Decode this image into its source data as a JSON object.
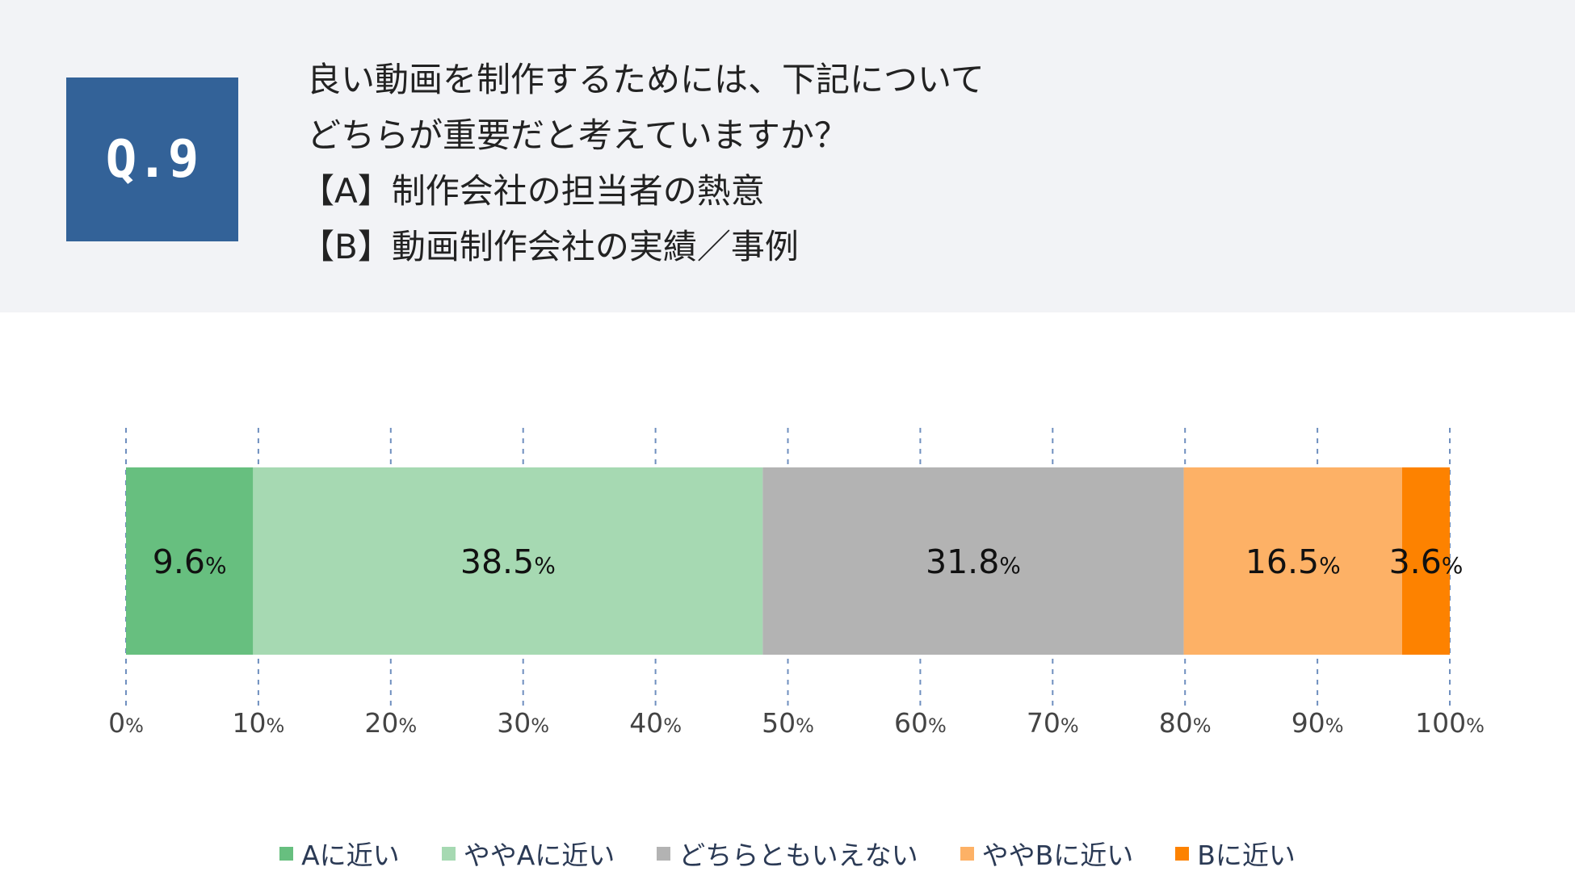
{
  "header": {
    "q_label": "Q.9",
    "question_lines": [
      "良い動画を制作するためには、下記について",
      "どちらが重要だと考えていますか？",
      "【A】制作会社の担当者の熱意",
      "【B】動画制作会社の実績／事例"
    ]
  },
  "chart_data": {
    "type": "bar",
    "orientation": "horizontal",
    "stacked": true,
    "unit": "%",
    "xlim": [
      0,
      100
    ],
    "ticks": [
      "0%",
      "10%",
      "20%",
      "30%",
      "40%",
      "50%",
      "60%",
      "70%",
      "80%",
      "90%",
      "100%"
    ],
    "grid": true,
    "legend_position": "bottom",
    "series": [
      {
        "name": "Aに近い",
        "value": 9.6,
        "label": "9.6",
        "color": "#67bf7f"
      },
      {
        "name": "ややAに近い",
        "value": 38.5,
        "label": "38.5",
        "color": "#a6d9b2"
      },
      {
        "name": "どちらともいえない",
        "value": 31.8,
        "label": "31.8",
        "color": "#b3b3b3"
      },
      {
        "name": "ややBに近い",
        "value": 16.5,
        "label": "16.5",
        "color": "#fdb166"
      },
      {
        "name": "Bに近い",
        "value": 3.6,
        "label": "3.6",
        "color": "#fd8200"
      }
    ]
  }
}
